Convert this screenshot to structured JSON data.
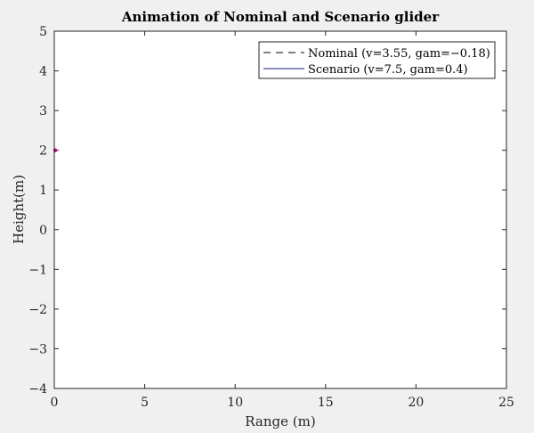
{
  "chart_data": {
    "type": "line",
    "title": "Animation of Nominal and Scenario glider",
    "xlabel": "Range (m)",
    "ylabel": "Height(m)",
    "xlim": [
      0,
      25
    ],
    "ylim": [
      -4,
      5
    ],
    "xticks": [
      0,
      5,
      10,
      15,
      20,
      25
    ],
    "yticks": [
      -4,
      -3,
      -2,
      -1,
      0,
      1,
      2,
      3,
      4,
      5
    ],
    "xtick_labels": [
      "0",
      "5",
      "10",
      "15",
      "20",
      "25"
    ],
    "ytick_labels": [
      "−4",
      "−3",
      "−2",
      "−1",
      "0",
      "1",
      "2",
      "3",
      "4",
      "5"
    ],
    "grid": false,
    "legend_position": "top-right",
    "series": [
      {
        "name": "Nominal (v=3.55, gam=−0.18)",
        "style": "dashed",
        "color": "#000000",
        "x": [
          0
        ],
        "y": [
          2
        ]
      },
      {
        "name": "Scenario (v=7.5, gam=0.4)",
        "style": "solid",
        "color": "#1a1a8c",
        "x": [
          0
        ],
        "y": [
          2
        ]
      }
    ],
    "marker": {
      "x": 0,
      "y": 2,
      "color": "#c0006a"
    }
  }
}
